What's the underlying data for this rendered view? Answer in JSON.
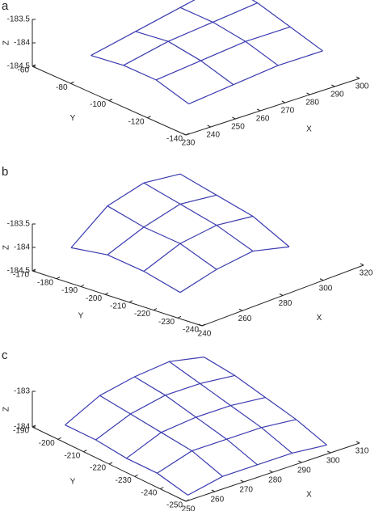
{
  "chart_data": [
    {
      "type": "wireframe",
      "label": "a",
      "x_label": "X",
      "y_label": "Y",
      "z_label": "Z",
      "color": "#3a3ab0",
      "x": [
        242,
        260,
        278,
        296
      ],
      "y": [
        -75,
        -92,
        -109,
        -126
      ],
      "z": [
        [
          -184.2,
          -184.0,
          -183.8,
          -183.6
        ],
        [
          -184.1,
          -183.9,
          -183.8,
          -183.7
        ],
        [
          -184.1,
          -184.0,
          -183.9,
          -183.9
        ],
        [
          -184.3,
          -184.2,
          -184.1,
          -184.1
        ]
      ],
      "xlim": [
        230,
        300
      ],
      "ylim": [
        -140,
        -60
      ],
      "zlim": [
        -184.5,
        -183.5
      ],
      "xticks": [
        230,
        240,
        250,
        260,
        270,
        280,
        290,
        300
      ],
      "yticks": [
        -60,
        -80,
        -100,
        -120,
        -140
      ],
      "zticks": [
        -183.5,
        -184,
        -184.5
      ]
    },
    {
      "type": "wireframe",
      "label": "b",
      "x_label": "X",
      "y_label": "Y",
      "z_label": "Z",
      "color": "#3a3ab0",
      "x": [
        252,
        270,
        288,
        306
      ],
      "y": [
        -176,
        -191,
        -206,
        -221
      ],
      "z": [
        [
          -184.1,
          -183.5,
          -183.3,
          -183.4
        ],
        [
          -184.0,
          -183.7,
          -183.5,
          -183.6
        ],
        [
          -184.1,
          -183.8,
          -183.7,
          -183.8
        ],
        [
          -184.3,
          -184.1,
          -184.0,
          -184.2
        ]
      ],
      "xlim": [
        240,
        320
      ],
      "ylim": [
        -240,
        -170
      ],
      "zlim": [
        -184.5,
        -183.5
      ],
      "xticks": [
        240,
        260,
        280,
        300,
        320
      ],
      "yticks": [
        -170,
        -180,
        -190,
        -200,
        -210,
        -220,
        -230,
        -240
      ],
      "zticks": [
        -183.5,
        -184,
        -184.5
      ]
    },
    {
      "type": "wireframe",
      "label": "c",
      "x_label": "X",
      "y_label": "Y",
      "z_label": "Z",
      "color": "#3a3ab0",
      "x": [
        256,
        268,
        280,
        292,
        304
      ],
      "y": [
        -196,
        -208,
        -220,
        -232,
        -244
      ],
      "z": [
        [
          -183.9,
          -183.4,
          -183.2,
          -183.1,
          -183.3
        ],
        [
          -183.9,
          -183.5,
          -183.3,
          -183.3,
          -183.4
        ],
        [
          -184.0,
          -183.6,
          -183.5,
          -183.5,
          -183.6
        ],
        [
          -184.0,
          -183.7,
          -183.7,
          -183.7,
          -183.8
        ],
        [
          -184.2,
          -184.0,
          -184.0,
          -184.0,
          -184.1
        ]
      ],
      "xlim": [
        250,
        310
      ],
      "ylim": [
        -250,
        -190
      ],
      "zlim": [
        -184,
        -183
      ],
      "xticks": [
        250,
        260,
        270,
        280,
        290,
        300,
        310
      ],
      "yticks": [
        -190,
        -200,
        -210,
        -220,
        -230,
        -240,
        -250
      ],
      "zticks": [
        -183,
        -184
      ]
    }
  ]
}
